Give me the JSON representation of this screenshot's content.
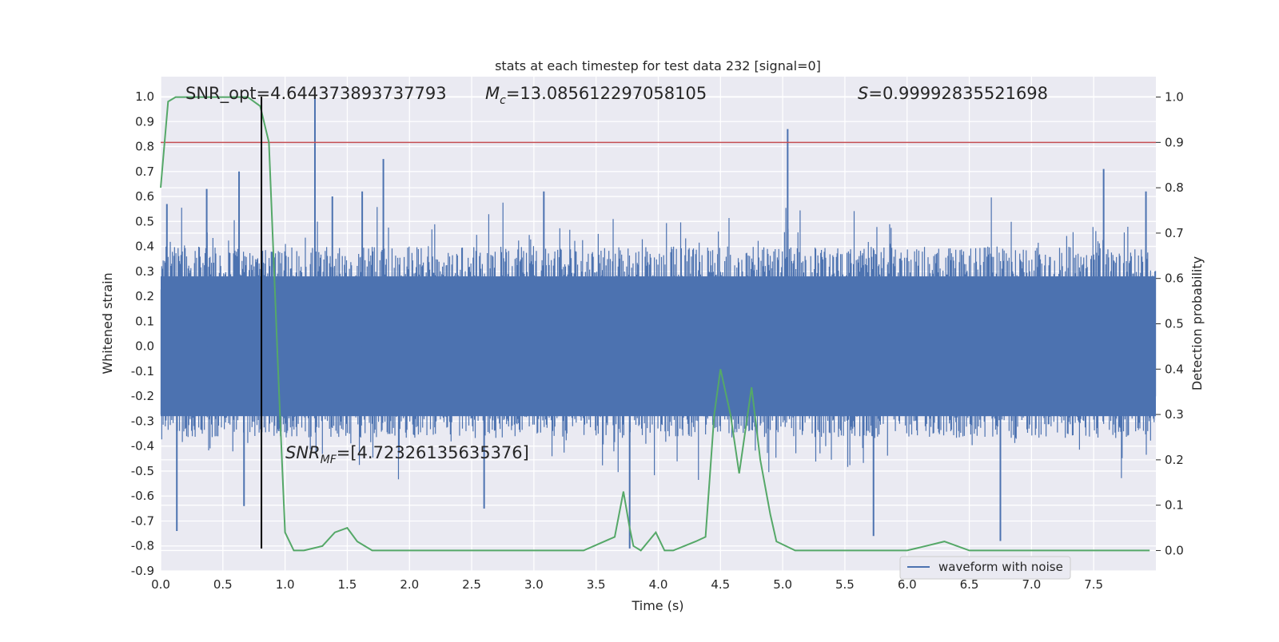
{
  "chart_data": {
    "type": "line",
    "title": "stats at each timestep for test data 232 [signal=0]",
    "xlabel": "Time (s)",
    "ylabel": "Whitened strain",
    "y2label": "Detection probability",
    "xlim": [
      0.0,
      8.0
    ],
    "ylim": [
      -0.9,
      1.08
    ],
    "y2lim": [
      -0.045,
      1.045
    ],
    "xticks": [
      "0.0",
      "0.5",
      "1.0",
      "1.5",
      "2.0",
      "2.5",
      "3.0",
      "3.5",
      "4.0",
      "4.5",
      "5.0",
      "5.5",
      "6.0",
      "6.5",
      "7.0",
      "7.5"
    ],
    "yticks": [
      "1.0",
      "0.9",
      "0.8",
      "0.7",
      "0.6",
      "0.5",
      "0.4",
      "0.3",
      "0.2",
      "0.1",
      "0.0",
      "-0.1",
      "-0.2",
      "-0.3",
      "-0.4",
      "-0.5",
      "-0.6",
      "-0.7",
      "-0.8",
      "-0.9"
    ],
    "y2ticks": [
      "1.0",
      "0.9",
      "0.8",
      "0.7",
      "0.6",
      "0.5",
      "0.4",
      "0.3",
      "0.2",
      "0.1",
      "0.0"
    ],
    "grid": true,
    "legend_position": "lower-right",
    "annotations": {
      "snr_opt": "SNR_opt=4.644373893737793",
      "mc_symbol": "M",
      "mc_sub": "c",
      "mc_value": "=13.085612297058105",
      "s_symbol": "S",
      "s_value": "=0.99992835521698",
      "snr_mf_symbol": "SNR",
      "snr_mf_sub": "MF",
      "snr_mf_value": "=[4.72326135635376]"
    },
    "threshold": {
      "value": 0.9,
      "axis": "right",
      "color": "#c44e52"
    },
    "marker_line": {
      "x": 0.81,
      "y_from": -0.81,
      "y_to": 1.0,
      "color": "#000000"
    },
    "series": [
      {
        "name": "waveform with noise",
        "axis": "left",
        "color": "#4c72b0",
        "style": "dense noise",
        "envelope_top": 0.4,
        "envelope_bottom": -0.35,
        "spikes": [
          {
            "x": 0.05,
            "y": 0.57
          },
          {
            "x": 0.13,
            "y": -0.74
          },
          {
            "x": 0.37,
            "y": 0.63
          },
          {
            "x": 0.63,
            "y": 0.7
          },
          {
            "x": 0.67,
            "y": -0.64
          },
          {
            "x": 1.24,
            "y": 1.0
          },
          {
            "x": 1.38,
            "y": 0.6
          },
          {
            "x": 1.62,
            "y": 0.62
          },
          {
            "x": 1.79,
            "y": 0.75
          },
          {
            "x": 2.6,
            "y": -0.65
          },
          {
            "x": 3.08,
            "y": 0.62
          },
          {
            "x": 3.77,
            "y": -0.81
          },
          {
            "x": 5.04,
            "y": 0.87
          },
          {
            "x": 5.73,
            "y": -0.76
          },
          {
            "x": 6.75,
            "y": -0.78
          },
          {
            "x": 7.58,
            "y": 0.71
          },
          {
            "x": 7.92,
            "y": 0.62
          }
        ]
      },
      {
        "name": "",
        "axis": "right",
        "color": "#55a868",
        "x": [
          0.0,
          0.06,
          0.12,
          0.25,
          0.5,
          0.7,
          0.8,
          0.87,
          0.95,
          1.0,
          1.07,
          1.15,
          1.3,
          1.4,
          1.5,
          1.58,
          1.7,
          2.0,
          2.5,
          3.0,
          3.4,
          3.65,
          3.72,
          3.77,
          3.8,
          3.86,
          3.92,
          3.98,
          4.05,
          4.12,
          4.3,
          4.38,
          4.45,
          4.5,
          4.58,
          4.65,
          4.75,
          4.82,
          4.9,
          4.95,
          5.1,
          5.5,
          6.0,
          6.15,
          6.3,
          6.5,
          7.0,
          7.5,
          7.95
        ],
        "y": [
          0.8,
          0.99,
          1.0,
          1.0,
          1.0,
          1.0,
          0.98,
          0.9,
          0.36,
          0.04,
          0.0,
          0.0,
          0.01,
          0.04,
          0.05,
          0.02,
          0.0,
          0.0,
          0.0,
          0.0,
          0.0,
          0.03,
          0.13,
          0.05,
          0.01,
          0.0,
          0.02,
          0.04,
          0.0,
          0.0,
          0.02,
          0.03,
          0.3,
          0.4,
          0.3,
          0.17,
          0.36,
          0.2,
          0.08,
          0.02,
          0.0,
          0.0,
          0.0,
          0.01,
          0.02,
          0.0,
          0.0,
          0.0,
          0.0
        ]
      }
    ]
  }
}
